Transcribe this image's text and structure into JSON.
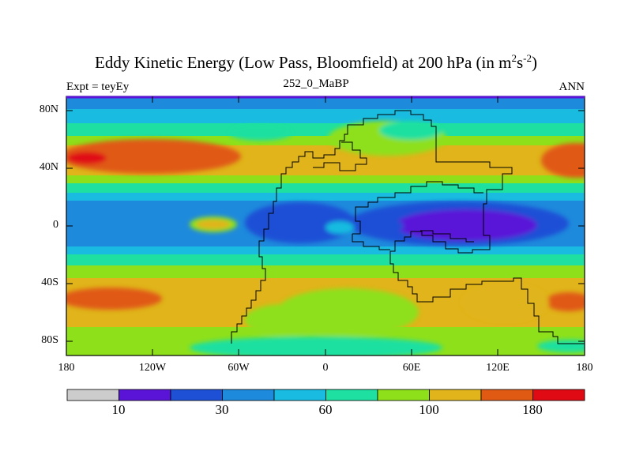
{
  "title": {
    "main": "Eddy Kinetic Energy (Low Pass, Bloomfield) at 200 hPa (in m",
    "sup1": "2",
    "mid": "s",
    "sup2": "-2",
    "end": ")"
  },
  "left_label": "Expt = teyEy",
  "center_label": "252_0_MaBP",
  "right_label": "ANN",
  "y_ticks": [
    "80N",
    "40N",
    "0",
    "40S",
    "80S"
  ],
  "x_ticks": [
    "180",
    "120W",
    "60W",
    "0",
    "60E",
    "120E",
    "180"
  ],
  "colorbar": {
    "colors": [
      "#cccccc",
      "#5a14d8",
      "#1e50d6",
      "#1e8adc",
      "#19bce0",
      "#1ee0a0",
      "#8ee01a",
      "#e0b41a",
      "#e05a14",
      "#e00a14"
    ],
    "labels": [
      "10",
      "30",
      "60",
      "100",
      "180"
    ]
  },
  "chart_data": {
    "type": "heatmap",
    "title": "Eddy Kinetic Energy (Low Pass, Bloomfield) at 200 hPa (in m2s-2)",
    "subtitle_left": "Expt = teyEy",
    "subtitle_center": "252_0_MaBP",
    "subtitle_right": "ANN",
    "x_range": [
      -180,
      180
    ],
    "y_range": [
      -90,
      90
    ],
    "x_ticks": [
      "180",
      "120W",
      "60W",
      "0",
      "60E",
      "120E",
      "180"
    ],
    "y_ticks": [
      "80N",
      "40N",
      "0",
      "40S",
      "80S"
    ],
    "colorbar_levels": [
      10,
      20,
      30,
      45,
      60,
      80,
      100,
      140,
      180
    ],
    "colorbar_labels": [
      "10",
      "30",
      "60",
      "100",
      "180"
    ],
    "latitude_profile_approx": [
      {
        "lat": 80,
        "value": 45
      },
      {
        "lat": 60,
        "value": 80
      },
      {
        "lat": 45,
        "value": 140
      },
      {
        "lat": 20,
        "value": 80
      },
      {
        "lat": 0,
        "value": 40
      },
      {
        "lat": -20,
        "value": 70
      },
      {
        "lat": -50,
        "value": 140
      },
      {
        "lat": -80,
        "value": 80
      }
    ]
  }
}
